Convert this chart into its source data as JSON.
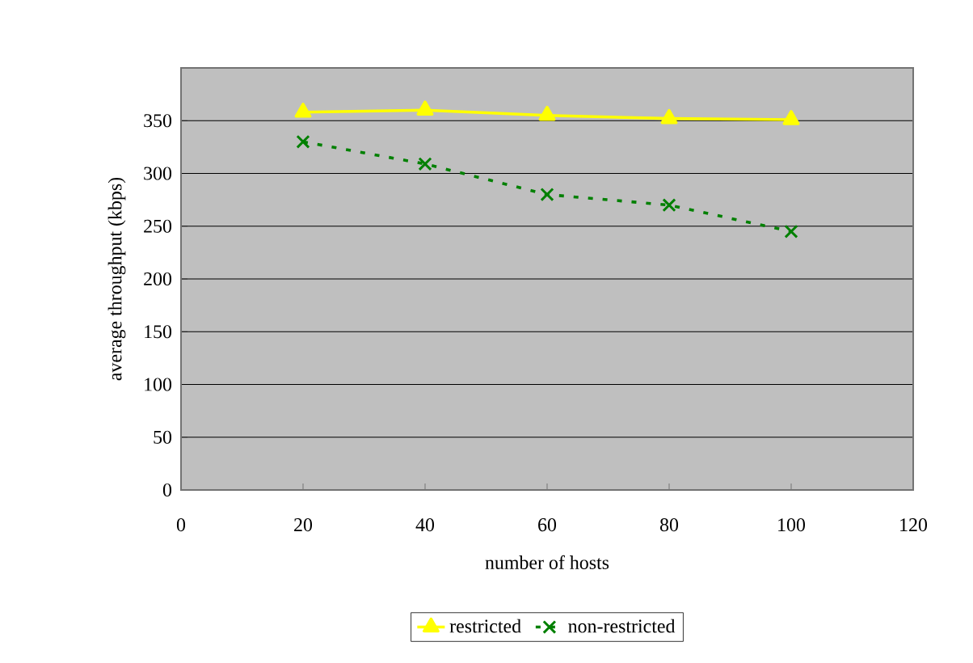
{
  "chart_data": {
    "type": "line",
    "xlabel": "number of hosts",
    "ylabel": "average throughput (kbps)",
    "x": [
      20,
      40,
      60,
      80,
      100
    ],
    "series": [
      {
        "name": "restricted",
        "color": "#ffff00",
        "marker": "triangle",
        "line_style": "solid",
        "values": [
          358,
          360,
          355,
          352,
          351
        ]
      },
      {
        "name": "non-restricted",
        "color": "#008000",
        "marker": "cross",
        "line_style": "dotted",
        "values": [
          330,
          309,
          280,
          270,
          245
        ]
      }
    ],
    "xlim": [
      0,
      120
    ],
    "xticks": [
      0,
      20,
      40,
      60,
      80,
      100,
      120
    ],
    "ylim": [
      0,
      400
    ],
    "yticks": [
      0,
      50,
      100,
      150,
      200,
      250,
      300,
      350
    ],
    "grid": "y",
    "legend": "bottom"
  }
}
